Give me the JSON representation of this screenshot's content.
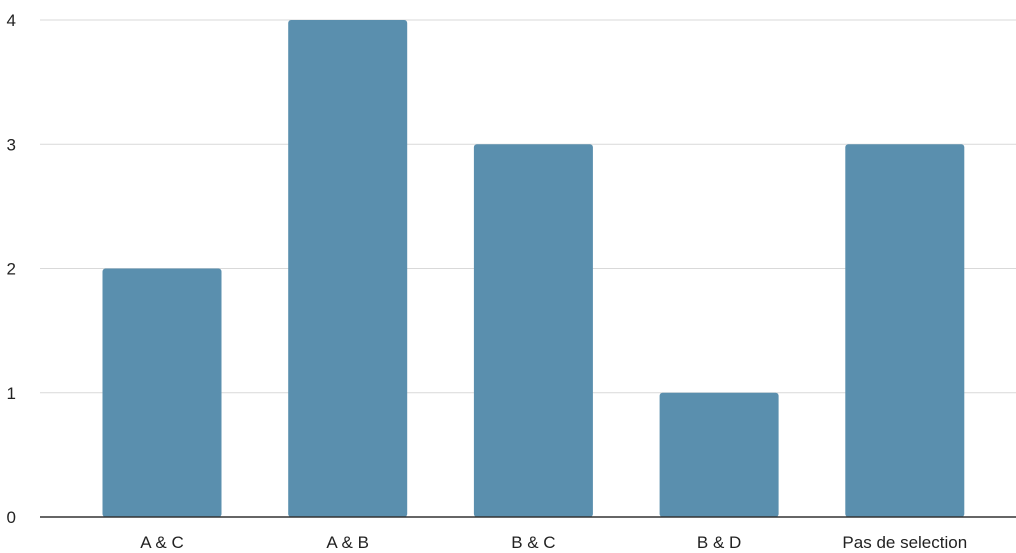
{
  "chart_data": {
    "type": "bar",
    "categories": [
      "A & C",
      "A & B",
      "B & C",
      "B & D",
      "Pas de selection"
    ],
    "values": [
      2,
      4,
      3,
      1,
      3
    ],
    "title": "",
    "xlabel": "",
    "ylabel": "",
    "ylim": [
      0,
      4
    ],
    "yticks": [
      "0",
      "1",
      "2",
      "3",
      "4"
    ],
    "grid": true,
    "legend": "none",
    "bar_color": "#5a8fae",
    "grid_color": "#d9d9d9",
    "axis_color": "#333333"
  }
}
